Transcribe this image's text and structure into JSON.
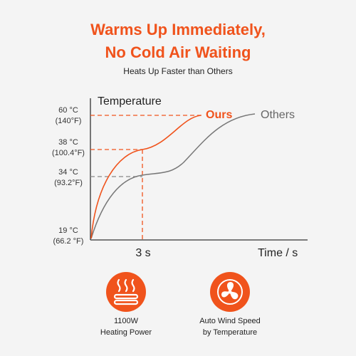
{
  "header": {
    "title_lines": [
      "Warms Up Immediately,",
      "No Cold Air Waiting"
    ],
    "subtitle": "Heats Up Faster than Others"
  },
  "graph": {
    "y_axis_label": "Temperature",
    "x_axis_label": "Time / s",
    "x_marker": "3 s",
    "levels": [
      {
        "celsius": "60 °C",
        "fahrenheit": "(140°F)"
      },
      {
        "celsius": "38 °C",
        "fahrenheit": "(100.4°F)"
      },
      {
        "celsius": "34 °C",
        "fahrenheit": "(93.2°F)"
      },
      {
        "celsius": "19 °C",
        "fahrenheit": "(66.2 °F)"
      }
    ],
    "curves": [
      {
        "label": "Ours"
      },
      {
        "label": "Others"
      }
    ]
  },
  "features": [
    {
      "text_lines": [
        "1100W",
        "Heating Power"
      ]
    },
    {
      "text_lines": [
        "Auto Wind Speed",
        "by Temperature"
      ]
    }
  ]
}
